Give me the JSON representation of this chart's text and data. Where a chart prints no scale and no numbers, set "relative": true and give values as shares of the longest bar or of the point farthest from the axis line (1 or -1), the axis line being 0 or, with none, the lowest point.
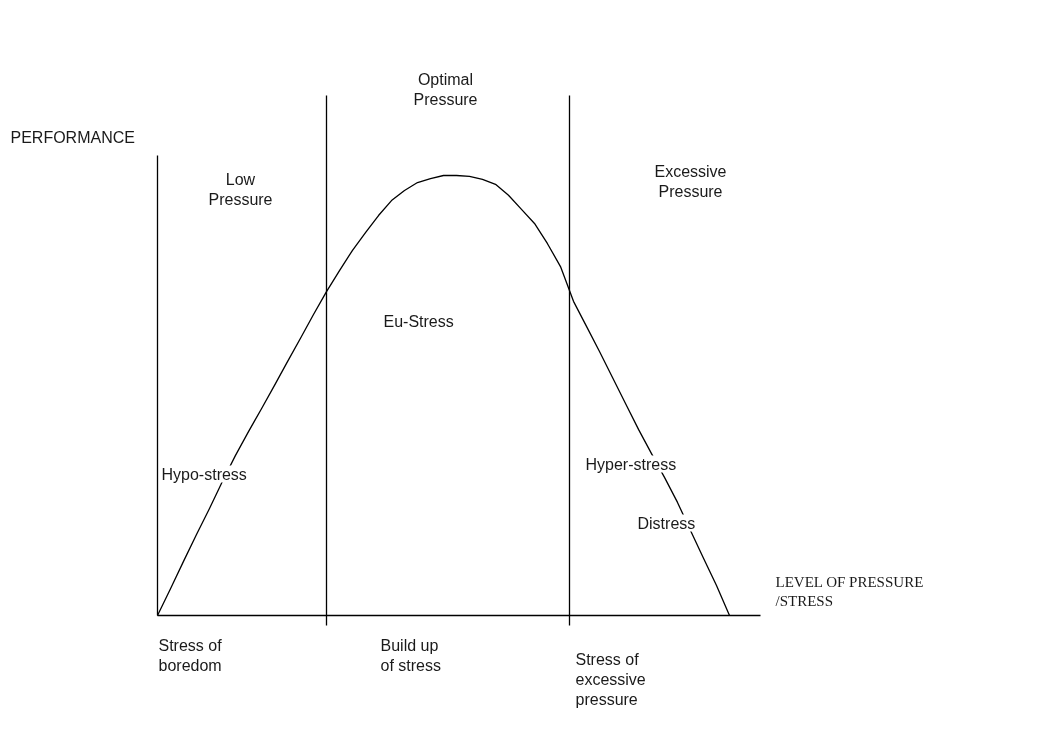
{
  "chart_data": {
    "type": "line",
    "relative": true,
    "xlabel": "LEVEL OF PRESSURE /STRESS",
    "ylabel": "PERFORMANCE",
    "color": "#000000",
    "categories": [
      null,
      null,
      null,
      null,
      null,
      null,
      null,
      null,
      null,
      null,
      null,
      null,
      null,
      null,
      null,
      null,
      null,
      null,
      null,
      null,
      null,
      null,
      null,
      null,
      null,
      null,
      null,
      null,
      null,
      null,
      null,
      null,
      null,
      null,
      null,
      null,
      null,
      null,
      null,
      null,
      null,
      null,
      null,
      null,
      null
    ],
    "values": [
      0,
      0.061,
      0.123,
      0.184,
      0.243,
      0.305,
      0.364,
      0.418,
      0.47,
      0.523,
      0.577,
      0.63,
      0.684,
      0.736,
      0.784,
      0.83,
      0.87,
      0.909,
      0.943,
      0.966,
      0.984,
      0.993,
      1.0,
      1.0,
      0.998,
      0.991,
      0.98,
      0.955,
      0.923,
      0.891,
      0.845,
      0.793,
      0.714,
      0.657,
      0.6,
      0.541,
      0.482,
      0.423,
      0.368,
      0.314,
      0.257,
      0.193,
      0.13,
      0.068,
      0
    ],
    "annotations": [
      "Optimal Pressure",
      "Low Pressure",
      "Excessive Pressure",
      "Eu-Stress",
      "Hypo-stress",
      "Hyper-stress",
      "Distress",
      "Stress of boredom",
      "Build up of stress",
      "Stress of excessive pressure"
    ]
  }
}
